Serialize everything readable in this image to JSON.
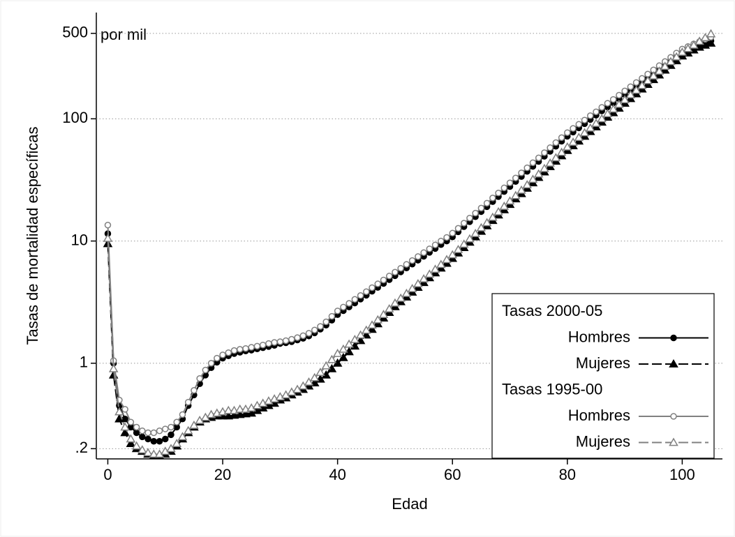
{
  "chart_data": {
    "type": "line",
    "y_label": "Tasas de mortalidad específicas",
    "x_label": "Edad",
    "annotation": "por mil",
    "log_y": true,
    "grid": true,
    "legend_position": "bottom-right",
    "legend_groups": [
      "Tasas 2000-05",
      "Tasas 1995-00"
    ],
    "xlim": [
      -2,
      107
    ],
    "xticks": [
      0,
      20,
      40,
      60,
      80,
      100
    ],
    "ylim": [
      0.165,
      740
    ],
    "yticks": [
      {
        "value": 0.2,
        "label": ".2"
      },
      1,
      10,
      100,
      500
    ],
    "x": [
      0,
      1,
      2,
      3,
      4,
      5,
      6,
      7,
      8,
      9,
      10,
      11,
      12,
      13,
      14,
      15,
      16,
      17,
      18,
      19,
      20,
      21,
      22,
      23,
      24,
      25,
      26,
      27,
      28,
      29,
      30,
      31,
      32,
      33,
      34,
      35,
      36,
      37,
      38,
      39,
      40,
      41,
      42,
      43,
      44,
      45,
      46,
      47,
      48,
      49,
      50,
      51,
      52,
      53,
      54,
      55,
      56,
      57,
      58,
      59,
      60,
      61,
      62,
      63,
      64,
      65,
      66,
      67,
      68,
      69,
      70,
      71,
      72,
      73,
      74,
      75,
      76,
      77,
      78,
      79,
      80,
      81,
      82,
      83,
      84,
      85,
      86,
      87,
      88,
      89,
      90,
      91,
      92,
      93,
      94,
      95,
      96,
      97,
      98,
      99,
      100,
      101,
      102,
      103,
      104,
      105
    ],
    "series": [
      {
        "name": "Hombres",
        "group": 0,
        "color": "#000000",
        "marker": "circle",
        "hollow": false,
        "dashed": false,
        "values": [
          11.5,
          1.0,
          0.45,
          0.35,
          0.3,
          0.27,
          0.25,
          0.24,
          0.23,
          0.23,
          0.24,
          0.26,
          0.3,
          0.35,
          0.45,
          0.55,
          0.68,
          0.8,
          0.92,
          1.02,
          1.1,
          1.15,
          1.2,
          1.23,
          1.26,
          1.28,
          1.31,
          1.34,
          1.37,
          1.4,
          1.45,
          1.47,
          1.5,
          1.55,
          1.6,
          1.67,
          1.77,
          1.9,
          2.05,
          2.25,
          2.5,
          2.69,
          2.89,
          3.11,
          3.35,
          3.6,
          3.88,
          4.17,
          4.49,
          4.83,
          5.2,
          5.59,
          6.02,
          6.47,
          6.97,
          7.5,
          8.07,
          8.68,
          9.34,
          10.0,
          10.8,
          11.9,
          13.1,
          14.4,
          15.8,
          17.4,
          19.1,
          21,
          23.1,
          25.4,
          27.9,
          30.7,
          33.7,
          37.1,
          40.8,
          44.8,
          49.3,
          54.2,
          59.6,
          65.5,
          72,
          77.9,
          84.3,
          91.2,
          98.7,
          107,
          116,
          125,
          135,
          146,
          158,
          171,
          185,
          200,
          217,
          235,
          254,
          275,
          297,
          322,
          348,
          365,
          383,
          400,
          418,
          435
        ]
      },
      {
        "name": "Mujeres",
        "group": 0,
        "color": "#000000",
        "marker": "triangle",
        "hollow": false,
        "dashed": true,
        "values": [
          9.5,
          0.8,
          0.35,
          0.27,
          0.22,
          0.2,
          0.19,
          0.18,
          0.175,
          0.175,
          0.18,
          0.19,
          0.21,
          0.24,
          0.27,
          0.3,
          0.33,
          0.35,
          0.36,
          0.37,
          0.37,
          0.37,
          0.375,
          0.38,
          0.385,
          0.39,
          0.41,
          0.43,
          0.45,
          0.47,
          0.5,
          0.52,
          0.55,
          0.58,
          0.61,
          0.65,
          0.69,
          0.74,
          0.8,
          0.9,
          1.0,
          1.11,
          1.24,
          1.38,
          1.53,
          1.7,
          1.89,
          2.1,
          2.34,
          2.6,
          2.9,
          3.18,
          3.48,
          3.81,
          4.17,
          4.57,
          5,
          5.48,
          6,
          6.57,
          7.2,
          7.97,
          8.82,
          9.77,
          10.8,
          12,
          13.3,
          14.7,
          16.3,
          18,
          19.9,
          22.1,
          24.4,
          27,
          29.9,
          33.1,
          36.7,
          40.6,
          44.9,
          49.7,
          55,
          60.1,
          65.7,
          71.8,
          78.5,
          85.8,
          93.8,
          103,
          112,
          122,
          134,
          146,
          160,
          175,
          191,
          209,
          228,
          250,
          273,
          298,
          326,
          345,
          365,
          385,
          400,
          415
        ]
      },
      {
        "name": "Hombres",
        "group": 1,
        "color": "#808080",
        "marker": "circle",
        "hollow": true,
        "dashed": false,
        "values": [
          13.5,
          1.05,
          0.5,
          0.42,
          0.33,
          0.3,
          0.28,
          0.27,
          0.27,
          0.28,
          0.29,
          0.3,
          0.33,
          0.38,
          0.48,
          0.6,
          0.75,
          0.88,
          1.0,
          1.1,
          1.17,
          1.22,
          1.27,
          1.3,
          1.32,
          1.35,
          1.38,
          1.41,
          1.45,
          1.48,
          1.5,
          1.53,
          1.57,
          1.62,
          1.68,
          1.76,
          1.87,
          2.0,
          2.18,
          2.42,
          2.68,
          2.88,
          3.09,
          3.33,
          3.58,
          3.85,
          4.15,
          4.46,
          4.8,
          5.17,
          5.56,
          5.98,
          6.44,
          6.92,
          7.46,
          8.03,
          8.63,
          9.29,
          9.99,
          10.7,
          11.6,
          12.7,
          14.0,
          15.4,
          16.9,
          18.6,
          20.4,
          22.5,
          24.7,
          27.2,
          29.9,
          32.8,
          36.1,
          39.7,
          43.7,
          47.9,
          52.8,
          58,
          63.8,
          70.1,
          77,
          83.4,
          90.2,
          97.6,
          106,
          114,
          124,
          134,
          144,
          156,
          169,
          183,
          198,
          214,
          232,
          251,
          272,
          294,
          318,
          345,
          372,
          390,
          410,
          428,
          447,
          465
        ]
      },
      {
        "name": "Mujeres",
        "group": 1,
        "color": "#808080",
        "marker": "triangle",
        "hollow": true,
        "dashed": true,
        "values": [
          10.5,
          0.9,
          0.4,
          0.3,
          0.24,
          0.21,
          0.195,
          0.185,
          0.18,
          0.18,
          0.19,
          0.2,
          0.22,
          0.25,
          0.28,
          0.31,
          0.34,
          0.36,
          0.38,
          0.39,
          0.4,
          0.41,
          0.41,
          0.42,
          0.42,
          0.43,
          0.45,
          0.47,
          0.49,
          0.51,
          0.53,
          0.55,
          0.58,
          0.61,
          0.65,
          0.7,
          0.76,
          0.84,
          0.95,
          1.07,
          1.2,
          1.3,
          1.43,
          1.56,
          1.7,
          1.86,
          2.05,
          2.26,
          2.5,
          2.78,
          3.1,
          3.4,
          3.72,
          4.07,
          4.46,
          4.89,
          5.35,
          5.86,
          6.42,
          7.03,
          7.7,
          8.5,
          9.4,
          10.4,
          11.5,
          12.8,
          14.1,
          15.6,
          17.3,
          19.2,
          21.2,
          23.5,
          26,
          28.8,
          31.9,
          35.3,
          39.1,
          43.3,
          47.9,
          53,
          58.7,
          64.2,
          70.2,
          76.7,
          83.8,
          91.6,
          100,
          110,
          120,
          131,
          143,
          157,
          171,
          187,
          205,
          224,
          245,
          268,
          293,
          320,
          350,
          375,
          400,
          430,
          460,
          495
        ]
      }
    ]
  }
}
